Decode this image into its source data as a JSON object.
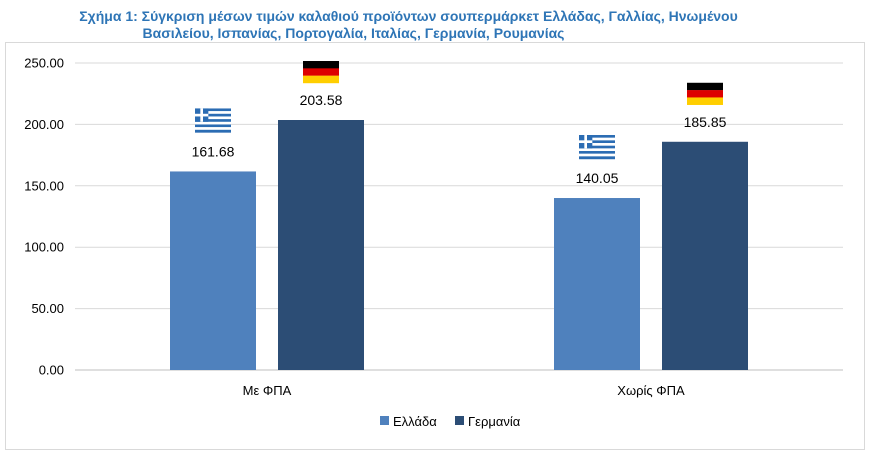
{
  "title": {
    "line1": "Σχήμα 1: Σύγκριση μέσων τιμών καλαθιού προϊόντων σουπερμάρκετ Ελλάδας, Γαλλίας, Ηνωμένου",
    "line2": "Βασιλείου, Ισπανίας, Πορτογαλία, Ιταλίας, Γερμανία, Ρουμανίας"
  },
  "chart_data": {
    "type": "bar",
    "categories": [
      "Με ΦΠΑ",
      "Χωρίς ΦΠΑ"
    ],
    "series": [
      {
        "name": "Ελλάδα",
        "color": "#4f81bd",
        "flag": "greece-flag",
        "values": [
          161.68,
          140.05
        ]
      },
      {
        "name": "Γερμανία",
        "color": "#2c4d75",
        "flag": "germany-flag",
        "values": [
          203.58,
          185.85
        ]
      }
    ],
    "data_labels": [
      [
        "161.68",
        "140.05"
      ],
      [
        "203.58",
        "185.85"
      ]
    ],
    "yticks": [
      "0.00",
      "50.00",
      "100.00",
      "150.00",
      "200.00",
      "250.00"
    ],
    "ylim": [
      0,
      250
    ],
    "grid": true,
    "legend_position": "bottom"
  }
}
